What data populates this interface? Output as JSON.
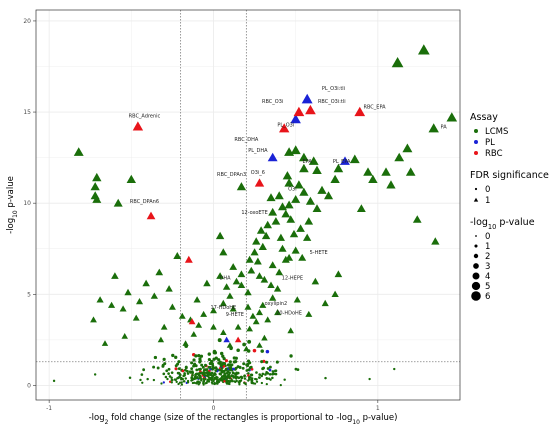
{
  "chart_data": {
    "type": "scatter",
    "title": "",
    "xlabel_parts": [
      "-log",
      "2",
      " fold change (size of the rectangles is proportional to -log",
      "10",
      " p-value)"
    ],
    "ylabel_parts": [
      "-log",
      "10",
      " p-value"
    ],
    "xlim": [
      -1.08,
      1.5
    ],
    "ylim": [
      -0.8,
      20.6
    ],
    "x_ticks": [
      -1,
      0,
      1
    ],
    "y_ticks": [
      0,
      5,
      10,
      15,
      20
    ],
    "grid": true,
    "legend_position": "right",
    "reference_lines": {
      "vertical": [
        -0.2,
        0.2
      ],
      "horizontal": [
        1.3
      ]
    },
    "colors": {
      "LCMS": "#1a6e0a",
      "PL": "#1a23d6",
      "RBC": "#e8141a",
      "grid": "#ebebeb",
      "frame": "#333333",
      "ref_line": "#808080"
    },
    "legend": {
      "assay": {
        "title": "Assay",
        "items": [
          "LCMS",
          "PL",
          "RBC"
        ]
      },
      "fdr": {
        "title": "FDR significance",
        "items": [
          "0",
          "1"
        ]
      },
      "size": {
        "title_parts": [
          "-log",
          "10",
          " p-value"
        ],
        "items": [
          "0",
          "1",
          "2",
          "3",
          "4",
          "5",
          "6"
        ]
      }
    },
    "labels": [
      {
        "text": "PL_O3i:tli",
        "x": 0.73,
        "y": 16.2
      },
      {
        "text": "RBC_O3i",
        "x": 0.36,
        "y": 15.5
      },
      {
        "text": "RBC_O3i:tli",
        "x": 0.72,
        "y": 15.5
      },
      {
        "text": "RBC_EPA",
        "x": 0.98,
        "y": 15.2
      },
      {
        "text": "RBC_Adrenic",
        "x": -0.42,
        "y": 14.7
      },
      {
        "text": "PL_O3i",
        "x": 0.44,
        "y": 14.2
      },
      {
        "text": "PA",
        "x": 1.4,
        "y": 14.1
      },
      {
        "text": "RBC_DHA",
        "x": 0.2,
        "y": 13.4
      },
      {
        "text": "PL_DHA",
        "x": 0.27,
        "y": 12.8
      },
      {
        "text": "EPA",
        "x": 0.57,
        "y": 12.2
      },
      {
        "text": "PL_EPA",
        "x": 0.78,
        "y": 12.2
      },
      {
        "text": "RBC_DPAn3",
        "x": 0.11,
        "y": 11.5
      },
      {
        "text": "O3i_6",
        "x": 0.27,
        "y": 11.6
      },
      {
        "text": "O3i",
        "x": 0.48,
        "y": 10.7
      },
      {
        "text": "RBC_DPAn6",
        "x": -0.42,
        "y": 10.0
      },
      {
        "text": "12-oxoETE",
        "x": 0.25,
        "y": 9.4
      },
      {
        "text": "5-HETE",
        "x": 0.64,
        "y": 7.2
      },
      {
        "text": "DHA",
        "x": 0.07,
        "y": 5.8
      },
      {
        "text": "12-HEPE",
        "x": 0.48,
        "y": 5.8
      },
      {
        "text": "oxylipin2",
        "x": 0.38,
        "y": 4.4
      },
      {
        "text": "17-HDoHE",
        "x": 0.06,
        "y": 4.2
      },
      {
        "text": "20-HDoHE",
        "x": 0.46,
        "y": 3.9
      },
      {
        "text": "9-HETE",
        "x": 0.13,
        "y": 3.8
      }
    ],
    "series": [
      {
        "name": "LCMS",
        "significant": [
          [
            1.28,
            18.4
          ],
          [
            1.12,
            17.7
          ],
          [
            1.45,
            14.7
          ],
          [
            1.34,
            14.1
          ],
          [
            1.18,
            13.0
          ],
          [
            1.13,
            12.5
          ],
          [
            1.05,
            11.7
          ],
          [
            1.2,
            11.7
          ],
          [
            1.08,
            11.0
          ],
          [
            0.94,
            11.7
          ],
          [
            0.97,
            11.3
          ],
          [
            0.86,
            12.4
          ],
          [
            0.76,
            11.9
          ],
          [
            0.74,
            11.3
          ],
          [
            0.63,
            11.8
          ],
          [
            0.61,
            12.3
          ],
          [
            0.55,
            12.5
          ],
          [
            0.55,
            11.9
          ],
          [
            0.5,
            12.9
          ],
          [
            0.46,
            12.8
          ],
          [
            0.45,
            11.5
          ],
          [
            0.46,
            11.1
          ],
          [
            0.52,
            11.0
          ],
          [
            0.55,
            10.6
          ],
          [
            0.59,
            10.1
          ],
          [
            0.63,
            9.7
          ],
          [
            0.66,
            10.7
          ],
          [
            0.5,
            10.2
          ],
          [
            0.46,
            9.9
          ],
          [
            0.44,
            9.4
          ],
          [
            0.42,
            9.8
          ],
          [
            0.4,
            10.4
          ],
          [
            0.38,
            9.0
          ],
          [
            0.36,
            9.5
          ],
          [
            0.35,
            10.3
          ],
          [
            0.33,
            8.8
          ],
          [
            0.32,
            8.2
          ],
          [
            0.29,
            8.5
          ],
          [
            0.3,
            7.6
          ],
          [
            0.26,
            7.9
          ],
          [
            0.25,
            7.3
          ],
          [
            0.27,
            6.8
          ],
          [
            0.22,
            6.9
          ],
          [
            0.23,
            6.3
          ],
          [
            0.28,
            6.0
          ],
          [
            0.31,
            5.8
          ],
          [
            0.35,
            5.5
          ],
          [
            0.39,
            5.3
          ],
          [
            0.36,
            6.6
          ],
          [
            0.4,
            6.2
          ],
          [
            0.44,
            6.9
          ],
          [
            0.42,
            7.5
          ],
          [
            0.46,
            7.0
          ],
          [
            0.5,
            7.4
          ],
          [
            0.54,
            7.0
          ],
          [
            0.57,
            8.1
          ],
          [
            0.53,
            8.6
          ],
          [
            0.49,
            8.3
          ],
          [
            0.41,
            8.1
          ],
          [
            0.47,
            9.1
          ],
          [
            0.58,
            9.0
          ],
          [
            0.36,
            4.8
          ],
          [
            0.3,
            4.4
          ],
          [
            0.28,
            4.0
          ],
          [
            0.24,
            3.8
          ],
          [
            0.21,
            4.3
          ],
          [
            0.21,
            5.1
          ],
          [
            0.14,
            5.7
          ],
          [
            0.1,
            4.9
          ],
          [
            0.17,
            5.5
          ],
          [
            0.26,
            3.5
          ],
          [
            0.22,
            3.1
          ],
          [
            0.33,
            3.6
          ],
          [
            0.39,
            4.0
          ],
          [
            0.12,
            4.2
          ],
          [
            0.06,
            4.5
          ],
          [
            0.0,
            4.1
          ],
          [
            -0.06,
            3.9
          ],
          [
            -0.1,
            4.7
          ],
          [
            -0.14,
            3.6
          ],
          [
            -0.19,
            3.8
          ],
          [
            -0.25,
            4.3
          ],
          [
            -0.3,
            3.2
          ],
          [
            -0.36,
            4.9
          ],
          [
            -0.41,
            5.6
          ],
          [
            -0.45,
            4.6
          ],
          [
            -0.52,
            5.1
          ],
          [
            -0.55,
            4.2
          ],
          [
            -0.62,
            4.4
          ],
          [
            -0.47,
            3.7
          ],
          [
            -0.27,
            5.3
          ],
          [
            -0.04,
            5.6
          ],
          [
            0.04,
            6.0
          ],
          [
            0.08,
            5.4
          ],
          [
            -0.33,
            6.2
          ],
          [
            -0.6,
            6.0
          ],
          [
            -0.69,
            4.7
          ],
          [
            -0.73,
            3.6
          ],
          [
            -0.22,
            7.1
          ],
          [
            -0.82,
            12.8
          ],
          [
            -0.71,
            11.4
          ],
          [
            -0.72,
            10.9
          ],
          [
            -0.72,
            10.4
          ],
          [
            -0.71,
            10.2
          ],
          [
            -0.58,
            10.0
          ],
          [
            -0.5,
            11.3
          ],
          [
            0.04,
            8.2
          ],
          [
            0.06,
            7.3
          ],
          [
            0.12,
            6.5
          ],
          [
            0.17,
            6.1
          ],
          [
            0.62,
            5.7
          ],
          [
            0.76,
            6.1
          ],
          [
            1.35,
            7.9
          ],
          [
            1.24,
            9.1
          ],
          [
            0.9,
            9.7
          ],
          [
            0.7,
            10.4
          ],
          [
            0.17,
            10.9
          ],
          [
            0.74,
            5.0
          ],
          [
            0.51,
            4.7
          ],
          [
            0.31,
            2.6
          ],
          [
            0.47,
            3.0
          ],
          [
            0.06,
            2.9
          ],
          [
            -0.12,
            2.8
          ],
          [
            -0.32,
            2.5
          ],
          [
            -0.54,
            2.7
          ],
          [
            -0.66,
            2.3
          ],
          [
            0.15,
            3.2
          ],
          [
            0.1,
            2.2
          ],
          [
            0.2,
            2.0
          ],
          [
            -0.17,
            2.3
          ],
          [
            0.58,
            3.9
          ],
          [
            0.68,
            4.5
          ],
          [
            0.0,
            3.2
          ],
          [
            -0.09,
            3.3
          ],
          [
            0.28,
            2.2
          ]
        ],
        "not_significant_count": 460
      },
      {
        "name": "PL",
        "significant": [
          [
            0.57,
            15.7
          ],
          [
            0.5,
            14.6
          ],
          [
            0.36,
            12.5
          ],
          [
            0.8,
            12.3
          ],
          [
            0.08,
            2.5
          ]
        ]
      },
      {
        "name": "RBC",
        "significant": [
          [
            0.89,
            15.0
          ],
          [
            0.59,
            15.1
          ],
          [
            0.52,
            15.0
          ],
          [
            0.43,
            14.1
          ],
          [
            -0.46,
            14.2
          ],
          [
            0.28,
            11.1
          ],
          [
            -0.38,
            9.3
          ],
          [
            -0.15,
            6.9
          ],
          [
            -0.13,
            3.5
          ],
          [
            0.15,
            2.5
          ]
        ]
      }
    ]
  }
}
